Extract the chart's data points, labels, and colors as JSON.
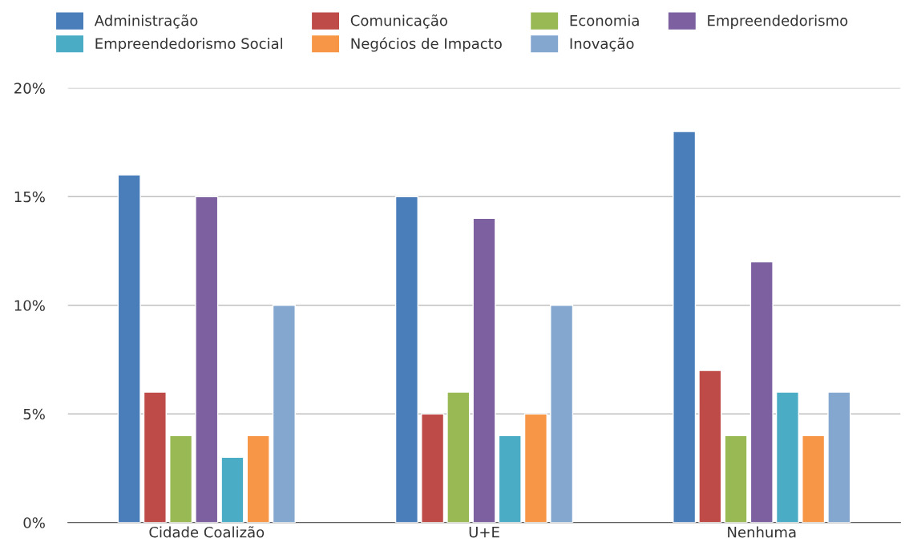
{
  "chart_data": {
    "type": "bar",
    "categories": [
      "Cidade Coalizão",
      "U+E",
      "Nenhuma"
    ],
    "series": [
      {
        "name": "Administração",
        "color": "#4a7ebb",
        "values": [
          16,
          15,
          18
        ]
      },
      {
        "name": "Comunicação",
        "color": "#be4b48",
        "values": [
          6,
          5,
          7
        ]
      },
      {
        "name": "Economia",
        "color": "#98b954",
        "values": [
          4,
          6,
          4
        ]
      },
      {
        "name": "Empreendedorismo",
        "color": "#7d60a0",
        "values": [
          15,
          14,
          12
        ]
      },
      {
        "name": "Empreendedorismo Social",
        "color": "#4aacc5",
        "values": [
          3,
          4,
          6
        ]
      },
      {
        "name": "Negócios de Impacto",
        "color": "#f79646",
        "values": [
          4,
          5,
          4
        ]
      },
      {
        "name": "Inovação",
        "color": "#84a7d0",
        "values": [
          10,
          10,
          6
        ]
      }
    ],
    "ylim": [
      0,
      20
    ],
    "yticks": [
      {
        "value": 0,
        "label": "0%"
      },
      {
        "value": 5,
        "label": "5%"
      },
      {
        "value": 10,
        "label": "10%"
      },
      {
        "value": 15,
        "label": "15%"
      },
      {
        "value": 20,
        "label": "20%"
      }
    ],
    "grid": "y",
    "legend": "top"
  }
}
